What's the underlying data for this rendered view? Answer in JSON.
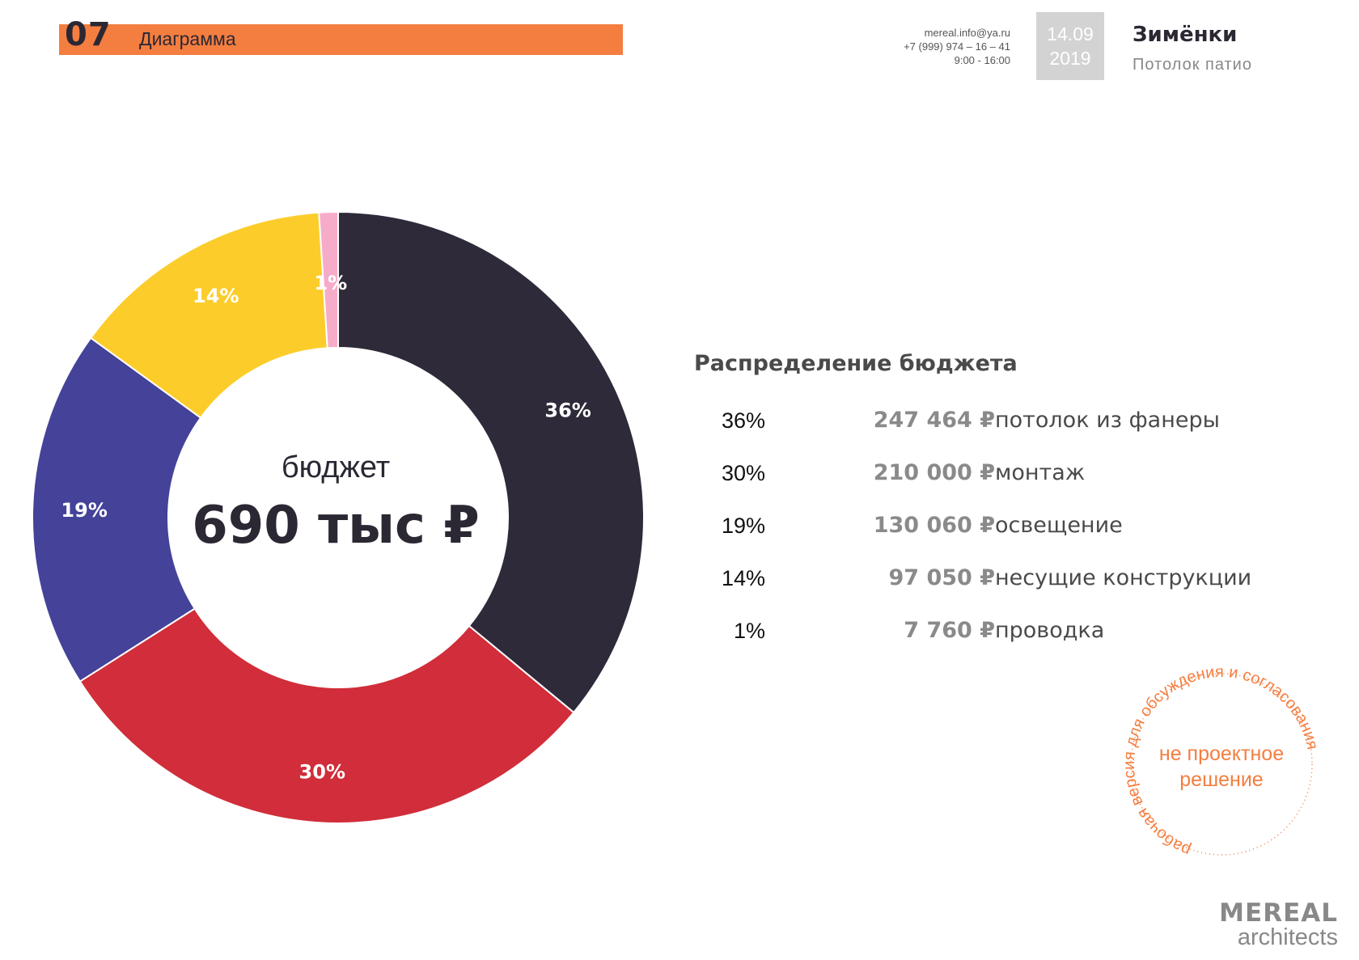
{
  "header": {
    "number": "07",
    "title": "Диаграмма",
    "contacts": [
      "mereal.info@ya.ru",
      "+7 (999) 974 – 16 – 41",
      "9:00 - 16:00"
    ],
    "date_line1": "14.09",
    "date_line2": "2019",
    "project_name": "Зимёнки",
    "project_sub": "Потолок патио"
  },
  "center": {
    "label": "бюджет",
    "value": "690 тыс ₽"
  },
  "table": {
    "title": "Распределение бюджета",
    "rows": [
      {
        "pct": "36%",
        "amount": "247 464 ₽",
        "desc": "потолок из фанеры"
      },
      {
        "pct": "30%",
        "amount": "210 000 ₽",
        "desc": "монтаж"
      },
      {
        "pct": "19%",
        "amount": "130 060 ₽",
        "desc": "освещение"
      },
      {
        "pct": "14%",
        "amount": "97 050 ₽",
        "desc": "несущие конструкции"
      },
      {
        "pct": "1%",
        "amount": "7 760 ₽",
        "desc": "проводка"
      }
    ]
  },
  "stamp": {
    "ring_text": "рабочая версия для обсуждения и согласования",
    "center_line1": "не проектное",
    "center_line2": "решение",
    "color": "#F47E40"
  },
  "logo": {
    "line1": "MEREAL",
    "line2": "architects"
  },
  "colors": {
    "accent": "#F47E40",
    "dark": "#2E2A39",
    "red": "#D12D3A",
    "blue": "#444299",
    "yellow": "#FCCD2A",
    "pink": "#F6ACC8"
  },
  "chart_data": {
    "type": "pie",
    "donut": true,
    "categories": [
      "потолок из фанеры",
      "монтаж",
      "освещение",
      "несущие конструкции",
      "проводка"
    ],
    "values": [
      36,
      30,
      19,
      14,
      1
    ],
    "labels": [
      "36%",
      "30%",
      "19%",
      "14%",
      "1%"
    ],
    "colors": [
      "#2E2A39",
      "#D12D3A",
      "#444299",
      "#FCCD2A",
      "#F6ACC8"
    ],
    "start": "12 o'clock",
    "direction": "clockwise"
  }
}
